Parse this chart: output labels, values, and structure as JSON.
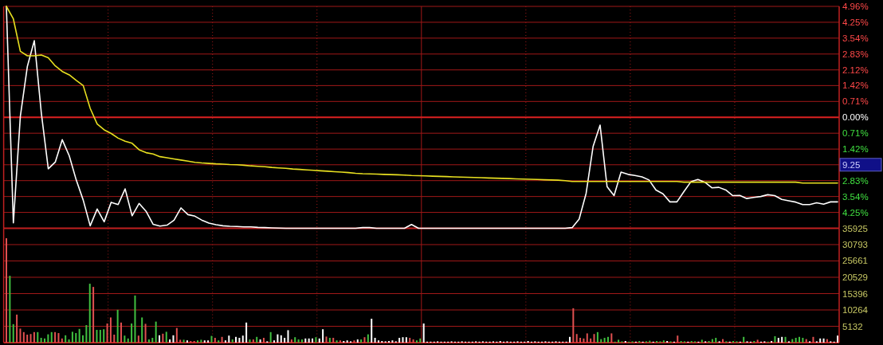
{
  "chart_data": [
    {
      "type": "line",
      "categories": [
        null,
        null,
        null,
        null,
        null,
        null,
        null,
        null,
        null,
        null,
        null,
        null,
        null,
        null,
        null,
        null,
        null,
        null,
        null,
        null,
        null,
        null,
        null,
        null,
        null,
        null,
        null,
        null,
        null,
        null,
        null,
        null,
        null,
        null,
        null,
        null,
        null,
        null,
        null,
        null,
        null,
        null,
        null,
        null,
        null,
        null,
        null,
        null,
        null,
        null,
        null,
        null,
        null,
        null,
        null,
        null,
        null,
        null,
        null,
        null,
        null,
        null,
        null,
        null,
        null,
        null,
        null,
        null,
        null,
        null,
        null,
        null,
        null,
        null,
        null,
        null,
        null,
        null,
        null,
        null,
        null,
        null,
        null,
        null,
        null,
        null,
        null,
        null,
        null,
        null,
        null,
        null,
        null,
        null,
        null,
        null,
        null,
        null,
        null,
        null,
        null,
        null,
        null,
        null,
        null,
        null,
        null,
        null,
        null,
        null,
        null,
        null,
        null,
        null,
        null,
        null,
        null,
        null,
        null,
        null
      ],
      "ylim": [
        -4.96,
        4.96
      ],
      "yticks": [
        {
          "value": 4.96,
          "label": "4.96%"
        },
        {
          "value": 4.25,
          "label": "4.25%"
        },
        {
          "value": 3.54,
          "label": "3.54%"
        },
        {
          "value": 2.83,
          "label": "2.83%"
        },
        {
          "value": 2.12,
          "label": "2.12%"
        },
        {
          "value": 1.42,
          "label": "1.42%"
        },
        {
          "value": 0.71,
          "label": "0.71%"
        },
        {
          "value": 0,
          "label": "0.00%"
        },
        {
          "value": -0.71,
          "label": "0.71%"
        },
        {
          "value": -1.42,
          "label": "1.42%"
        },
        {
          "value": -2.12,
          "label": null
        },
        {
          "value": -2.83,
          "label": "2.83%"
        },
        {
          "value": -3.54,
          "label": "3.54%"
        },
        {
          "value": -4.25,
          "label": "4.25%"
        },
        {
          "value": -4.96,
          "label": null
        }
      ],
      "grid": true,
      "tick_labels": "y",
      "line_style": "solid",
      "ref_lines": [
        {
          "axis": "y",
          "value": 0,
          "color": "#d82020"
        }
      ],
      "annotations": [
        "9.25"
      ],
      "series": [
        {
          "color": "#ffffff",
          "values": [
            4.96,
            -4.72,
            0.05,
            2.27,
            3.43,
            0.2,
            -2.3,
            -2.0,
            -1.0,
            -1.72,
            -2.8,
            -3.7,
            -4.85,
            -4.1,
            -4.67,
            -3.8,
            -3.9,
            -3.2,
            -4.4,
            -3.85,
            -4.2,
            -4.78,
            -4.86,
            -4.82,
            -4.6,
            -4.05,
            -4.35,
            -4.42,
            -4.6,
            -4.73,
            -4.8,
            -4.85,
            -4.87,
            -4.88,
            -4.9,
            -4.9,
            -4.92,
            -4.93,
            -4.94,
            -4.95,
            -4.96,
            -4.96,
            -4.96,
            -4.96,
            -4.96,
            -4.96,
            -4.96,
            -4.96,
            -4.96,
            -4.96,
            -4.96,
            -4.93,
            -4.93,
            -4.96,
            -4.96,
            -4.96,
            -4.96,
            -4.96,
            -4.79,
            -4.96,
            -4.96,
            -4.96,
            -4.96,
            -4.96,
            -4.96,
            -4.96,
            -4.96,
            -4.96,
            -4.96,
            -4.96,
            -4.96,
            -4.96,
            -4.96,
            -4.96,
            -4.96,
            -4.96,
            -4.96,
            -4.96,
            -4.96,
            -4.96,
            -4.96,
            -4.93,
            -4.55,
            -3.4,
            -1.3,
            -0.35,
            -3.1,
            -3.5,
            -2.45,
            -2.55,
            -2.6,
            -2.66,
            -2.8,
            -3.25,
            -3.42,
            -3.78,
            -3.78,
            -3.32,
            -2.88,
            -2.78,
            -2.9,
            -3.15,
            -3.13,
            -3.25,
            -3.5,
            -3.49,
            -3.63,
            -3.58,
            -3.54,
            -3.46,
            -3.5,
            -3.67,
            -3.73,
            -3.79,
            -3.9,
            -3.9,
            -3.82,
            -3.88,
            -3.78,
            -3.78
          ]
        },
        {
          "color": "#e8e020",
          "values": [
            4.96,
            4.4,
            2.95,
            2.75,
            2.75,
            2.79,
            2.66,
            2.3,
            2.05,
            1.9,
            1.65,
            1.42,
            0.4,
            -0.3,
            -0.56,
            -0.72,
            -0.93,
            -1.07,
            -1.16,
            -1.45,
            -1.58,
            -1.64,
            -1.76,
            -1.81,
            -1.86,
            -1.91,
            -1.96,
            -2.01,
            -2.04,
            -2.06,
            -2.08,
            -2.09,
            -2.11,
            -2.12,
            -2.14,
            -2.17,
            -2.19,
            -2.21,
            -2.24,
            -2.26,
            -2.28,
            -2.31,
            -2.33,
            -2.35,
            -2.37,
            -2.39,
            -2.41,
            -2.43,
            -2.45,
            -2.47,
            -2.5,
            -2.52,
            -2.53,
            -2.54,
            -2.55,
            -2.56,
            -2.57,
            -2.58,
            -2.6,
            -2.61,
            -2.62,
            -2.63,
            -2.64,
            -2.65,
            -2.66,
            -2.67,
            -2.68,
            -2.69,
            -2.7,
            -2.71,
            -2.72,
            -2.73,
            -2.74,
            -2.75,
            -2.76,
            -2.77,
            -2.78,
            -2.79,
            -2.8,
            -2.81,
            -2.83,
            -2.87,
            -2.87,
            -2.87,
            -2.87,
            -2.87,
            -2.87,
            -2.87,
            -2.87,
            -2.87,
            -2.87,
            -2.87,
            -2.87,
            -2.87,
            -2.87,
            -2.87,
            -2.87,
            -2.9,
            -2.9,
            -2.9,
            -2.9,
            -2.9,
            -2.9,
            -2.9,
            -2.9,
            -2.9,
            -2.9,
            -2.9,
            -2.9,
            -2.9,
            -2.9,
            -2.9,
            -2.9,
            -2.9,
            -2.94,
            -2.94,
            -2.94,
            -2.94,
            -2.94,
            -2.94
          ]
        }
      ]
    },
    {
      "type": "bar",
      "categories": [
        null,
        null,
        null,
        null,
        null,
        null,
        null,
        null,
        null,
        null,
        null,
        null,
        null,
        null,
        null,
        null,
        null,
        null,
        null,
        null,
        null,
        null,
        null,
        null,
        null,
        null,
        null,
        null,
        null,
        null,
        null,
        null,
        null,
        null,
        null,
        null,
        null,
        null,
        null,
        null,
        null,
        null,
        null,
        null,
        null,
        null,
        null,
        null,
        null,
        null,
        null,
        null,
        null,
        null,
        null,
        null,
        null,
        null,
        null,
        null,
        null,
        null,
        null,
        null,
        null,
        null,
        null,
        null,
        null,
        null,
        null,
        null,
        null,
        null,
        null,
        null,
        null,
        null,
        null,
        null,
        null,
        null,
        null,
        null,
        null,
        null,
        null,
        null,
        null,
        null,
        null,
        null,
        null,
        null,
        null,
        null,
        null,
        null,
        null,
        null,
        null,
        null,
        null,
        null,
        null,
        null,
        null,
        null,
        null,
        null,
        null,
        null,
        null,
        null,
        null,
        null,
        null,
        null,
        null,
        null,
        null,
        null,
        null,
        null,
        null,
        null,
        null,
        null,
        null,
        null,
        null,
        null,
        null,
        null,
        null,
        null,
        null,
        null,
        null,
        null,
        null,
        null,
        null,
        null,
        null,
        null,
        null,
        null,
        null,
        null,
        null,
        null,
        null,
        null,
        null,
        null,
        null,
        null,
        null,
        null,
        null,
        null,
        null,
        null,
        null,
        null,
        null,
        null,
        null,
        null,
        null,
        null,
        null,
        null,
        null,
        null,
        null,
        null,
        null,
        null,
        null,
        null,
        null,
        null,
        null,
        null,
        null,
        null,
        null,
        null,
        null,
        null,
        null,
        null,
        null,
        null,
        null,
        null,
        null,
        null,
        null,
        null,
        null,
        null,
        null,
        null,
        null,
        null,
        null,
        null,
        null,
        null,
        null,
        null,
        null,
        null,
        null,
        null,
        null,
        null,
        null,
        null,
        null,
        null,
        null,
        null,
        null,
        null,
        null,
        null,
        null,
        null,
        null,
        null,
        null,
        null,
        null,
        null,
        null,
        null
      ],
      "ylim": [
        0,
        35925
      ],
      "yticks": [
        5132,
        10264,
        15396,
        20529,
        25661,
        30793,
        35925
      ],
      "grid": true,
      "tick_labels": "y",
      "values": [
        32800,
        21000,
        5800,
        8800,
        4400,
        3300,
        2500,
        2700,
        3300,
        3300,
        1500,
        1300,
        2600,
        3300,
        3300,
        3000,
        1300,
        2300,
        1000,
        3400,
        3000,
        4300,
        2300,
        5500,
        18500,
        17500,
        4000,
        4000,
        4200,
        6000,
        7900,
        2500,
        10300,
        6300,
        2200,
        1300,
        6000,
        14800,
        2200,
        7900,
        5900,
        1000,
        1500,
        6600,
        2300,
        2800,
        3400,
        1000,
        2300,
        4600,
        900,
        900,
        700,
        500,
        500,
        700,
        900,
        700,
        700,
        2100,
        1500,
        700,
        1800,
        700,
        2200,
        1000,
        1800,
        1500,
        2200,
        6300,
        1000,
        1000,
        1800,
        1000,
        1500,
        400,
        3300,
        700,
        2600,
        2300,
        1500,
        3900,
        1000,
        1700,
        1000,
        1000,
        1300,
        1300,
        1300,
        1700,
        1300,
        4200,
        1900,
        1500,
        1500,
        700,
        700,
        500,
        700,
        400,
        700,
        1000,
        1000,
        1700,
        2600,
        7500,
        1500,
        700,
        500,
        400,
        500,
        700,
        400,
        1500,
        1700,
        1700,
        1500,
        1000,
        700,
        1300,
        6000,
        300,
        300,
        300,
        400,
        300,
        300,
        300,
        400,
        300,
        300,
        400,
        300,
        300,
        300,
        400,
        300,
        400,
        300,
        300,
        400,
        300,
        500,
        300,
        400,
        300,
        300,
        400,
        300,
        300,
        500,
        300,
        400,
        300,
        300,
        400,
        300,
        300,
        400,
        300,
        300,
        300,
        1800,
        10800,
        2700,
        1500,
        1300,
        2900,
        1300,
        2700,
        3300,
        1100,
        1500,
        1800,
        2900,
        300,
        900,
        400,
        500,
        300,
        400,
        300,
        500,
        300,
        400,
        600,
        300,
        500,
        400,
        700,
        500,
        400,
        300,
        2200,
        500,
        400,
        300,
        500,
        400,
        300,
        900,
        400,
        500,
        1100,
        1500,
        400,
        1100,
        400,
        300,
        500,
        400,
        300,
        1800,
        400,
        300,
        500,
        900,
        300,
        400,
        300,
        500,
        2000,
        1500,
        1800,
        1800,
        400,
        1100,
        1500,
        1800,
        1500,
        1100,
        400,
        1800,
        400,
        1300,
        1300,
        1100,
        400,
        300,
        2200
      ],
      "colors": [
        "#e05050",
        "#40c040",
        "#40c040",
        "#e05050",
        "#e05050",
        "#e05050",
        "#e05050",
        "#e05050",
        "#e05050",
        "#40c040",
        "#40c040",
        "#40c040",
        "#40c040",
        "#40c040",
        "#e05050",
        "#e05050",
        "#e05050",
        "#40c040",
        "#40c040",
        "#40c040",
        "#40c040",
        "#40c040",
        "#40c040",
        "#40c040",
        "#40c040",
        "#e05050",
        "#40c040",
        "#40c040",
        "#40c040",
        "#e05050",
        "#e05050",
        "#e05050",
        "#40c040",
        "#e05050",
        "#40c040",
        "#40c040",
        "#40c040",
        "#40c040",
        "#e05050",
        "#40c040",
        "#e05050",
        "#40c040",
        "#40c040",
        "#40c040",
        "#ffffff",
        "#e05050",
        "#40c040",
        "#ffffff",
        "#ffffff",
        "#e05050",
        "#e05050",
        "#40c040",
        "#ffffff",
        "#e05050",
        "#e05050",
        "#40c040",
        "#40c040",
        "#ffffff",
        "#ffffff",
        "#40c040",
        "#e05050",
        "#40c040",
        "#e05050",
        "#ffffff",
        "#ffffff",
        "#40c040",
        "#ffffff",
        "#ffffff",
        "#ffffff",
        "#ffffff",
        "#40c040",
        "#e05050",
        "#40c040",
        "#ffffff",
        "#e05050",
        "#ffffff",
        "#40c040",
        "#ffffff",
        "#ffffff",
        "#ffffff",
        "#ffffff",
        "#ffffff",
        "#e05050",
        "#40c040",
        "#40c040",
        "#40c040",
        "#ffffff",
        "#ffffff",
        "#ffffff",
        "#40c040",
        "#ffffff",
        "#ffffff",
        "#e05050",
        "#40c040",
        "#e05050",
        "#40c040",
        "#e05050",
        "#ffffff",
        "#ffffff",
        "#ffffff",
        "#e05050",
        "#ffffff",
        "#40c040",
        "#e05050",
        "#40c040",
        "#ffffff",
        "#ffffff",
        "#ffffff",
        "#ffffff",
        "#ffffff",
        "#ffffff",
        "#ffffff",
        "#ffffff",
        "#ffffff",
        "#ffffff",
        "#ffffff",
        "#e05050",
        "#e05050",
        "#40c040",
        "#40c040",
        "#ffffff",
        "#ffffff",
        "#ffffff",
        "#ffffff",
        "#ffffff",
        "#ffffff",
        "#ffffff",
        "#ffffff",
        "#ffffff",
        "#ffffff",
        "#ffffff",
        "#ffffff",
        "#ffffff",
        "#ffffff",
        "#ffffff",
        "#ffffff",
        "#ffffff",
        "#ffffff",
        "#ffffff",
        "#ffffff",
        "#ffffff",
        "#ffffff",
        "#ffffff",
        "#ffffff",
        "#ffffff",
        "#ffffff",
        "#ffffff",
        "#ffffff",
        "#ffffff",
        "#ffffff",
        "#ffffff",
        "#ffffff",
        "#ffffff",
        "#ffffff",
        "#ffffff",
        "#ffffff",
        "#ffffff",
        "#ffffff",
        "#ffffff",
        "#ffffff",
        "#ffffff",
        "#ffffff",
        "#ffffff",
        "#e05050",
        "#e05050",
        "#e05050",
        "#e05050",
        "#e05050",
        "#e05050",
        "#e05050",
        "#40c040",
        "#40c040",
        "#40c040",
        "#40c040",
        "#e05050",
        "#40c040",
        "#40c040",
        "#40c040",
        "#ffffff",
        "#40c040",
        "#40c040",
        "#ffffff",
        "#40c040",
        "#ffffff",
        "#40c040",
        "#40c040",
        "#ffffff",
        "#40c040",
        "#40c040",
        "#40c040",
        "#ffffff",
        "#40c040",
        "#ffffff",
        "#e05050",
        "#40c040",
        "#40c040",
        "#ffffff",
        "#40c040",
        "#40c040",
        "#ffffff",
        "#40c040",
        "#ffffff",
        "#40c040",
        "#40c040",
        "#40c040",
        "#ffffff",
        "#e05050",
        "#40c040",
        "#ffffff",
        "#40c040",
        "#40c040",
        "#ffffff",
        "#40c040",
        "#ffffff",
        "#ffffff",
        "#40c040",
        "#e05050",
        "#ffffff",
        "#ffffff",
        "#40c040",
        "#ffffff",
        "#40c040",
        "#ffffff",
        "#ffffff",
        "#40c040",
        "#ffffff",
        "#40c040",
        "#40c040",
        "#40c040",
        "#40c040",
        "#e05050",
        "#ffffff",
        "#e05050",
        "#ffffff",
        "#ffffff",
        "#ffffff",
        "#e05050",
        "#ffffff",
        "#ffffff",
        "#ffffff"
      ]
    }
  ]
}
